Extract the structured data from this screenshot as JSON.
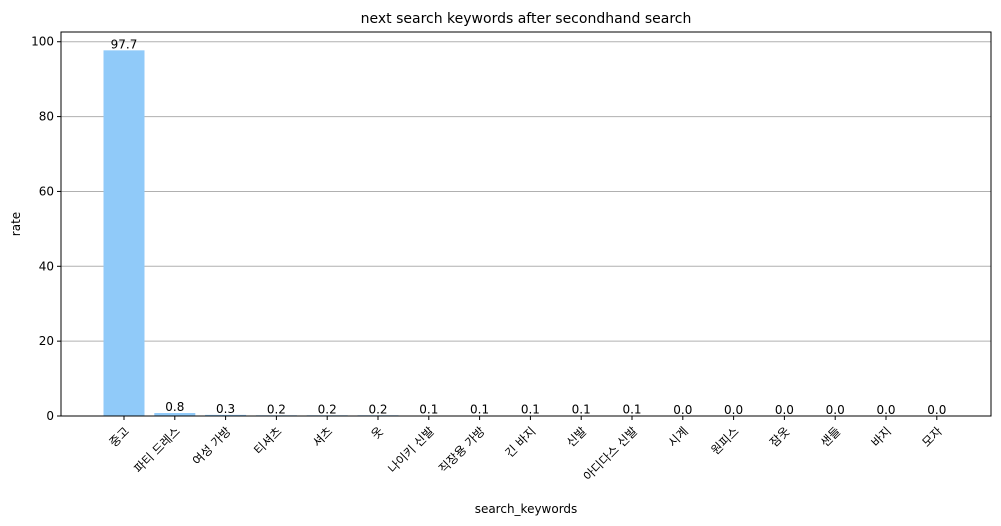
{
  "chart_data": {
    "type": "bar",
    "title": "next search keywords after secondhand search",
    "xlabel": "search_keywords",
    "ylabel": "rate",
    "ylim": [
      0,
      102.6
    ],
    "yticks": [
      0,
      20,
      40,
      60,
      80,
      100
    ],
    "grid": "y",
    "bar_color": "#90caf9",
    "categories": [
      "중고",
      "파티 드레스",
      "여성 가방",
      "티셔츠",
      "셔츠",
      "옷",
      "나이키 신발",
      "직장용 가방",
      "긴 바지",
      "신발",
      "아디다스 신발",
      "시계",
      "원피스",
      "잠옷",
      "샌들",
      "바지",
      "모자"
    ],
    "values": [
      97.7,
      0.8,
      0.3,
      0.2,
      0.2,
      0.2,
      0.1,
      0.1,
      0.1,
      0.1,
      0.1,
      0.0,
      0.0,
      0.0,
      0.0,
      0.0,
      0.0
    ],
    "value_labels": [
      "97.7",
      "0.8",
      "0.3",
      "0.2",
      "0.2",
      "0.2",
      "0.1",
      "0.1",
      "0.1",
      "0.1",
      "0.1",
      "0.0",
      "0.0",
      "0.0",
      "0.0",
      "0.0",
      "0.0"
    ]
  }
}
